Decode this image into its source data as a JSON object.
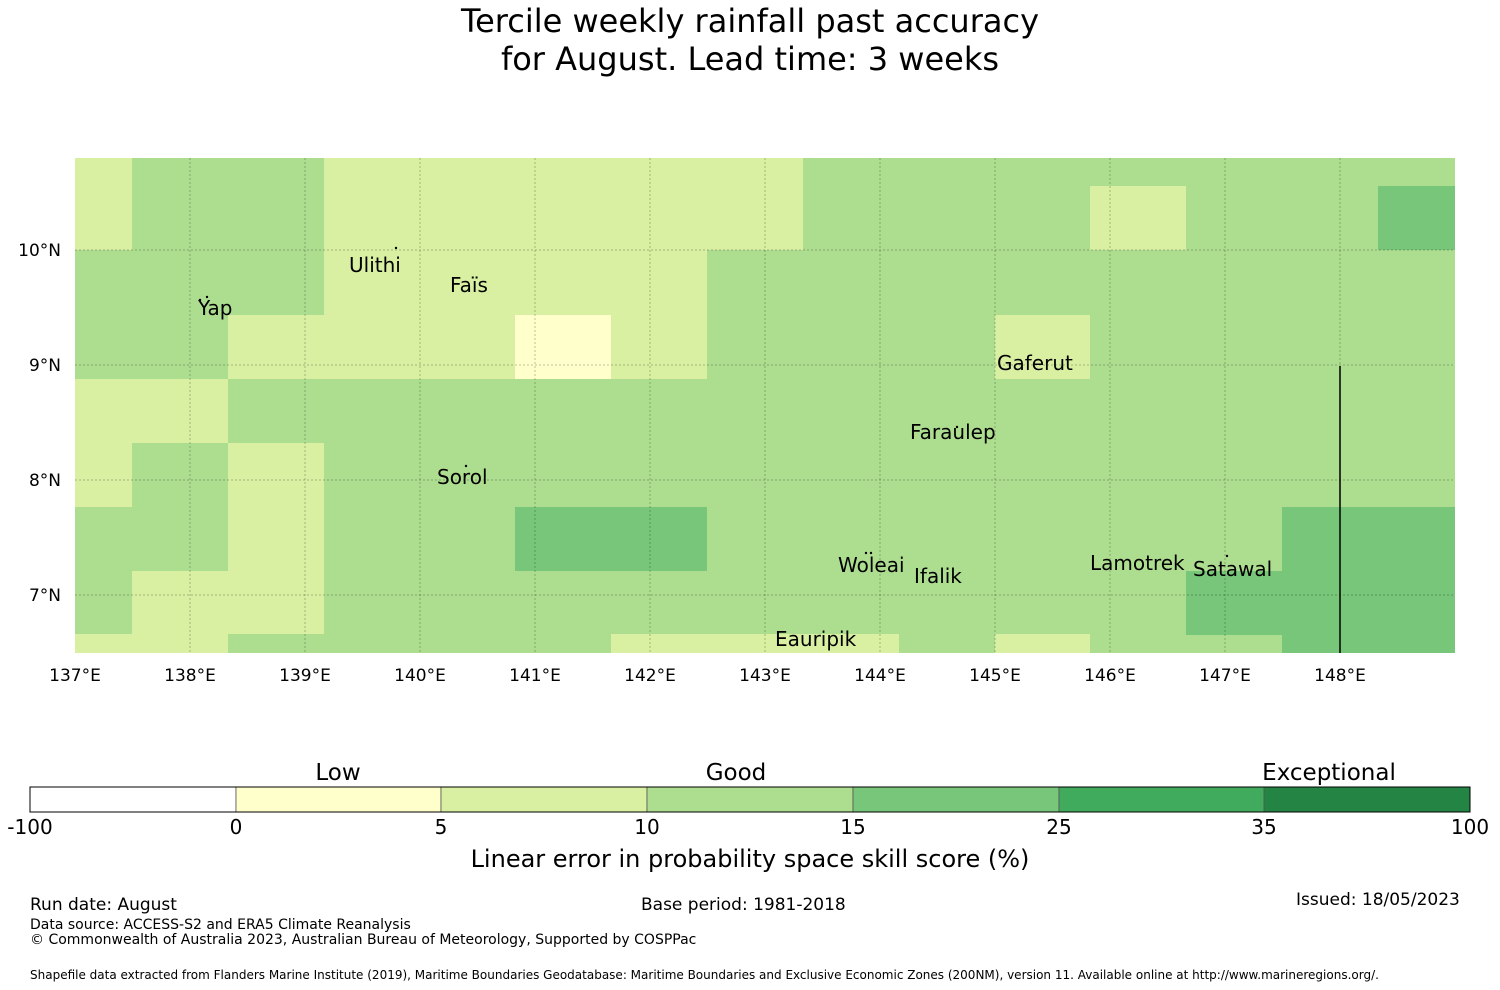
{
  "title_line1": "Tercile weekly rainfall past accuracy",
  "title_line2": "for August. Lead time: 3 weeks",
  "map": {
    "lon_labels": [
      "137°E",
      "138°E",
      "139°E",
      "140°E",
      "141°E",
      "142°E",
      "143°E",
      "144°E",
      "145°E",
      "146°E",
      "147°E",
      "148°E"
    ],
    "lat_labels": [
      "10°N",
      "9°N",
      "8°N",
      "7°N"
    ],
    "islands": [
      "Ulithi",
      "Yap",
      "Faïs",
      "Gaferut",
      "Faraulep",
      "Sorol",
      "Woleai",
      "Ifalik",
      "Lamotrek",
      "Satawal",
      "Eauripik"
    ],
    "grid_legend_classes": [
      "c0",
      "c5",
      "c10",
      "c15"
    ]
  },
  "colorbar": {
    "category_labels": [
      "Low",
      "Good",
      "Exceptional"
    ],
    "ticks": [
      "-100",
      "0",
      "5",
      "10",
      "15",
      "25",
      "35",
      "100"
    ],
    "colors": [
      "#ffffff",
      "#ffffcc",
      "#d9f0a3",
      "#addd8e",
      "#78c679",
      "#41ab5d",
      "#238443"
    ],
    "caption": "Linear error in probability space skill score (%)"
  },
  "footer": {
    "run_date": "Run date: August",
    "base_period": "Base period: 1981-2018",
    "issued": "Issued: 18/05/2023",
    "data_source": "Data source: ACCESS-S2 and ERA5 Climate Reanalysis",
    "copyright": "© Commonwealth of Australia 2023, Australian Bureau of Meteorology, Supported by COSPPac",
    "shapefile": "Shapefile data extracted from Flanders Marine Institute (2019), Maritime Boundaries Geodatabase: Maritime Boundaries and Exclusive Economic Zones (200NM), version 11. Available online at http://www.marineregions.org/."
  }
}
